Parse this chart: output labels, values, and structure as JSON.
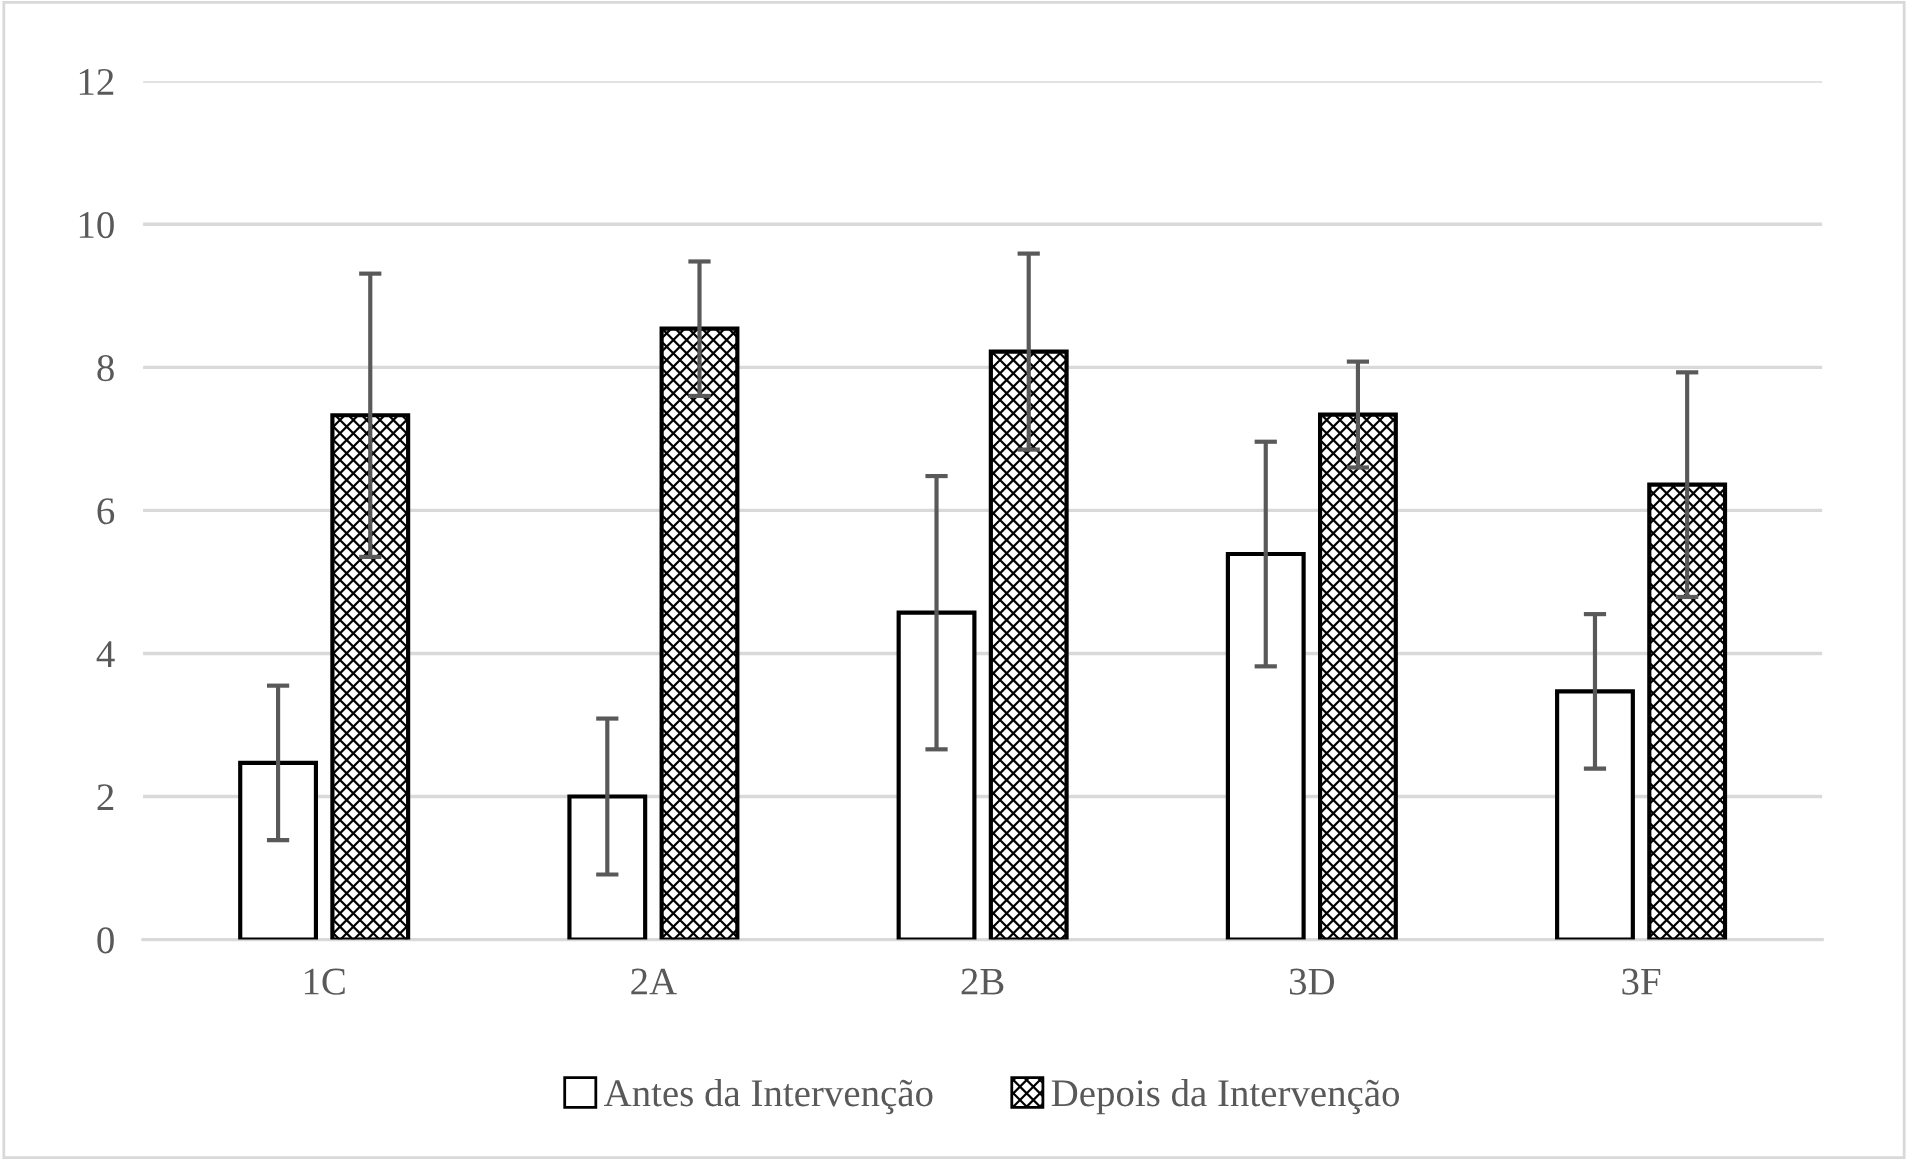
{
  "chart_data": {
    "type": "bar",
    "categories": [
      "1C",
      "2A",
      "2B",
      "3D",
      "3F"
    ],
    "series": [
      {
        "name": "Antes da Intervenção",
        "color": "#ffffff",
        "values": [
          2.47,
          2.0,
          4.57,
          5.39,
          3.47
        ],
        "errors": [
          1.08,
          1.09,
          1.91,
          1.57,
          1.08
        ]
      },
      {
        "name": "Depois da Intervenção",
        "color": "#000000",
        "values": [
          7.33,
          8.54,
          8.22,
          7.34,
          6.36
        ],
        "errors": [
          1.98,
          0.94,
          1.37,
          0.74,
          1.57
        ]
      }
    ],
    "ylim": [
      0,
      12
    ],
    "yticks": [
      0,
      2,
      4,
      6,
      8,
      10,
      12
    ],
    "grid": "y",
    "legend": "bottom"
  }
}
